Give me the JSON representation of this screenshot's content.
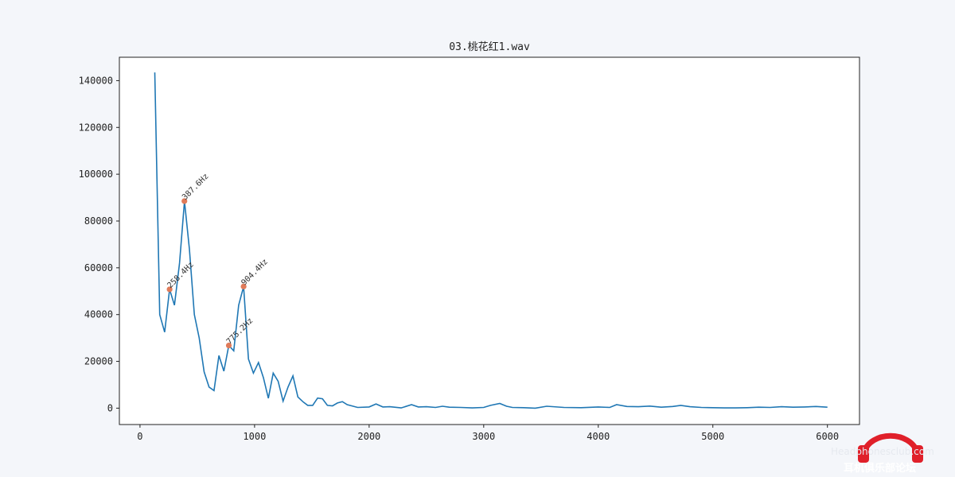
{
  "chart_data": {
    "type": "line",
    "title": "03.桃花红1.wav",
    "xlabel": "",
    "ylabel": "",
    "xlim": [
      -180,
      6280
    ],
    "ylim": [
      -7000,
      150000
    ],
    "xticks": [
      0,
      1000,
      2000,
      3000,
      4000,
      5000,
      6000
    ],
    "yticks": [
      0,
      20000,
      40000,
      60000,
      80000,
      100000,
      120000,
      140000
    ],
    "grid": false,
    "line_color": "#1f77b4",
    "marker_color": "#e07b5a",
    "series": [
      {
        "x": [
          129,
          172,
          215,
          258,
          301,
          345,
          388,
          431,
          474,
          517,
          560,
          603,
          646,
          689,
          732,
          775,
          818,
          861,
          904,
          947,
          990,
          1034,
          1077,
          1120,
          1163,
          1206,
          1249,
          1292,
          1335,
          1378,
          1421,
          1464,
          1507,
          1550,
          1593,
          1636,
          1680,
          1723,
          1766,
          1809,
          1900,
          2000,
          2060,
          2120,
          2180,
          2280,
          2370,
          2430,
          2500,
          2580,
          2640,
          2700,
          2800,
          2900,
          3000,
          3060,
          3140,
          3200,
          3250,
          3350,
          3450,
          3550,
          3700,
          3850,
          4000,
          4100,
          4160,
          4250,
          4350,
          4450,
          4550,
          4650,
          4720,
          4800,
          4900,
          5000,
          5100,
          5200,
          5300,
          5400,
          5500,
          5600,
          5700,
          5800,
          5900,
          6000
        ],
        "values": [
          143500,
          40000,
          32500,
          50800,
          44000,
          62000,
          88500,
          68000,
          40000,
          30000,
          15500,
          9000,
          7500,
          22500,
          15800,
          26800,
          24500,
          44000,
          52000,
          21000,
          15000,
          19500,
          13000,
          4200,
          15000,
          11500,
          3000,
          9000,
          13800,
          4800,
          2800,
          1200,
          1200,
          4300,
          4000,
          1200,
          1000,
          2200,
          2800,
          1500,
          300,
          500,
          1800,
          500,
          600,
          100,
          1500,
          500,
          600,
          300,
          800,
          400,
          300,
          100,
          300,
          1200,
          2000,
          800,
          300,
          200,
          0,
          800,
          300,
          200,
          500,
          300,
          1500,
          700,
          600,
          900,
          400,
          700,
          1200,
          600,
          300,
          200,
          100,
          100,
          200,
          400,
          300,
          600,
          400,
          500,
          700,
          400
        ]
      }
    ],
    "peaks": [
      {
        "x": 258.4,
        "y": 50800,
        "label": "258.4Hz"
      },
      {
        "x": 387.6,
        "y": 88500,
        "label": "387.6Hz"
      },
      {
        "x": 775.2,
        "y": 26800,
        "label": "775.2Hz"
      },
      {
        "x": 904.4,
        "y": 52000,
        "label": "904.4Hz"
      }
    ]
  },
  "watermark": {
    "text": "耳机俱乐部论坛",
    "url": "Headphonesclub.com",
    "color": "#e0202a"
  }
}
